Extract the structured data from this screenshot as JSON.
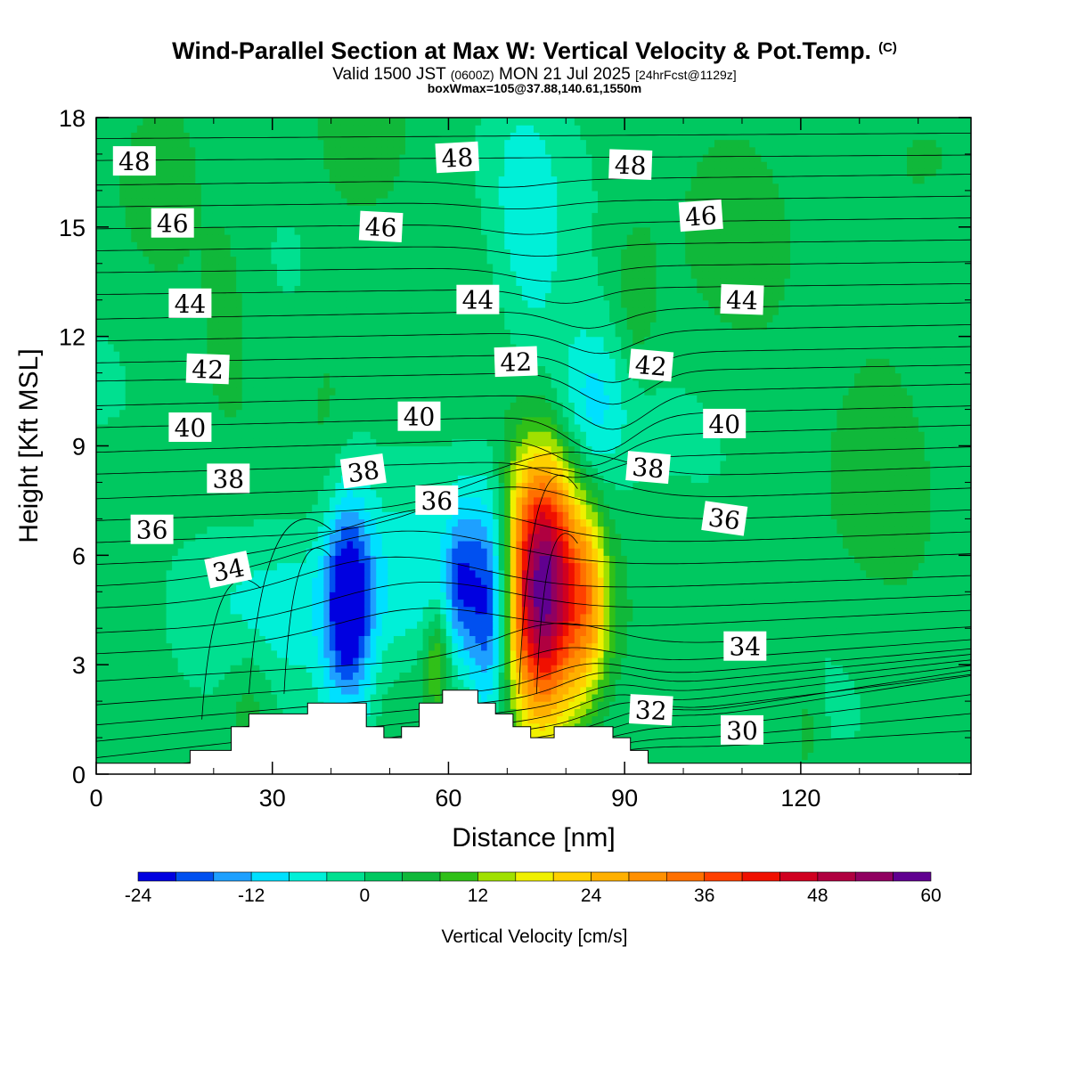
{
  "header": {
    "title": "Wind-Parallel Section at Max W: Vertical Velocity & Pot.Temp.",
    "title_mark": "(C)",
    "valid_prefix": "Valid 1500 JST",
    "valid_utc": "(0600Z)",
    "valid_date": "MON 21 Jul 2025",
    "forecast": "[24hrFcst@1129z]",
    "box_info": "boxWmax=105@37.88,140.61,1550m"
  },
  "chart_data": {
    "type": "heatmap",
    "xlabel": "Distance [nm]",
    "ylabel": "Height [Kft MSL]",
    "xlim": [
      0,
      149
    ],
    "ylim": [
      0,
      18
    ],
    "x_ticks": [
      0,
      30,
      60,
      90,
      120
    ],
    "y_ticks": [
      0,
      3,
      6,
      9,
      12,
      15,
      18
    ],
    "colorbar": {
      "label": "Vertical Velocity [cm/s]",
      "ticks": [
        -24,
        -12,
        0,
        12,
        24,
        36,
        48,
        60
      ],
      "levels": [
        -24,
        -20,
        -16,
        -12,
        -8,
        -4,
        0,
        4,
        8,
        12,
        16,
        20,
        24,
        28,
        32,
        36,
        40,
        44,
        48,
        52,
        56,
        60
      ],
      "colors": [
        "#0000e0",
        "#0050f0",
        "#1ea0ff",
        "#00e0ff",
        "#00f0d8",
        "#00e090",
        "#00c860",
        "#10b83a",
        "#30c018",
        "#a0e000",
        "#f0f000",
        "#ffd000",
        "#ffb000",
        "#ff9000",
        "#ff7000",
        "#ff4000",
        "#f01000",
        "#d00020",
        "#b00040",
        "#900060",
        "#600090"
      ]
    },
    "terrain_kft": [
      {
        "x": 0,
        "h": 0.3
      },
      {
        "x": 16,
        "h": 0.3
      },
      {
        "x": 16,
        "h": 0.65
      },
      {
        "x": 23,
        "h": 0.65
      },
      {
        "x": 23,
        "h": 1.3
      },
      {
        "x": 26,
        "h": 1.3
      },
      {
        "x": 26,
        "h": 1.65
      },
      {
        "x": 36,
        "h": 1.65
      },
      {
        "x": 36,
        "h": 1.95
      },
      {
        "x": 46,
        "h": 1.95
      },
      {
        "x": 46,
        "h": 1.3
      },
      {
        "x": 49,
        "h": 1.3
      },
      {
        "x": 49,
        "h": 1.0
      },
      {
        "x": 52,
        "h": 1.0
      },
      {
        "x": 52,
        "h": 1.3
      },
      {
        "x": 55,
        "h": 1.3
      },
      {
        "x": 55,
        "h": 1.95
      },
      {
        "x": 59,
        "h": 1.95
      },
      {
        "x": 59,
        "h": 2.3
      },
      {
        "x": 65,
        "h": 2.3
      },
      {
        "x": 65,
        "h": 1.95
      },
      {
        "x": 68,
        "h": 1.95
      },
      {
        "x": 68,
        "h": 1.65
      },
      {
        "x": 71,
        "h": 1.65
      },
      {
        "x": 71,
        "h": 1.3
      },
      {
        "x": 74,
        "h": 1.3
      },
      {
        "x": 74,
        "h": 1.0
      },
      {
        "x": 78,
        "h": 1.0
      },
      {
        "x": 78,
        "h": 1.3
      },
      {
        "x": 88,
        "h": 1.3
      },
      {
        "x": 88,
        "h": 1.0
      },
      {
        "x": 91,
        "h": 1.0
      },
      {
        "x": 91,
        "h": 0.65
      },
      {
        "x": 94,
        "h": 0.65
      },
      {
        "x": 94,
        "h": 0.3
      },
      {
        "x": 149,
        "h": 0.3
      }
    ],
    "w_features": [
      {
        "x": 76,
        "y": 5.2,
        "sx": 4.5,
        "sy": 2.6,
        "w": 60
      },
      {
        "x": 84,
        "y": 4.6,
        "sx": 2.5,
        "sy": 1.8,
        "w": 18
      },
      {
        "x": 43,
        "y": 4.6,
        "sx": 3.0,
        "sy": 2.2,
        "w": -24
      },
      {
        "x": 67,
        "y": 4.5,
        "sx": 2.5,
        "sy": 2.3,
        "w": -22
      },
      {
        "x": 62,
        "y": 5.3,
        "sx": 1.8,
        "sy": 1.5,
        "w": -12
      },
      {
        "x": 55,
        "y": 5.2,
        "sx": 11.0,
        "sy": 1.7,
        "w": -8
      },
      {
        "x": 31,
        "y": 4.5,
        "sx": 9.0,
        "sy": 1.7,
        "w": -6
      },
      {
        "x": 84,
        "y": 10.0,
        "sx": 4.5,
        "sy": 1.6,
        "w": -12
      },
      {
        "x": 75,
        "y": 12.5,
        "sx": 4.5,
        "sy": 3.5,
        "w": -6
      },
      {
        "x": 72,
        "y": 15.8,
        "sx": 3.5,
        "sy": 2.0,
        "w": -4
      },
      {
        "x": 58,
        "y": 3.2,
        "sx": 1.5,
        "sy": 1.0,
        "w": 12
      },
      {
        "x": 26,
        "y": 2.0,
        "sx": 3.0,
        "sy": 1.3,
        "w": 6
      },
      {
        "x": 92,
        "y": 13.0,
        "sx": 2.5,
        "sy": 1.5,
        "w": 6
      },
      {
        "x": 22,
        "y": 13.0,
        "sx": 3.0,
        "sy": 2.0,
        "w": 4
      },
      {
        "x": 12,
        "y": 16.5,
        "sx": 4.0,
        "sy": 2.0,
        "w": 4
      },
      {
        "x": 135,
        "y": 11.0,
        "sx": 7.0,
        "sy": 4.0,
        "w": 4
      },
      {
        "x": 110,
        "y": 15.5,
        "sx": 6.0,
        "sy": 2.5,
        "w": 4
      },
      {
        "x": 45,
        "y": 17.0,
        "sx": 5.0,
        "sy": 1.5,
        "w": 4
      },
      {
        "x": 40,
        "y": 11.0,
        "sx": 3.0,
        "sy": 2.5,
        "w": 3
      },
      {
        "x": 121,
        "y": 1.3,
        "sx": 1.5,
        "sy": 1.0,
        "w": 5
      }
    ],
    "theta_contours": [
      {
        "base": 0.45,
        "rate": 0.01,
        "bumps": [
          [
            95,
            0.08,
            8
          ]
        ]
      },
      {
        "base": 0.55,
        "rate": 0.015,
        "bumps": [
          [
            95,
            0.1,
            8
          ]
        ]
      },
      {
        "base": 0.7,
        "rate": 0.02,
        "bumps": [
          [
            95,
            0.15,
            8
          ]
        ]
      },
      {
        "base": 0.85,
        "rate": 0.025,
        "bumps": [
          [
            95,
            0.2,
            8
          ]
        ]
      },
      {
        "base": 1.0,
        "rate": 0.025,
        "bumps": [
          [
            93,
            0.3,
            8
          ]
        ]
      },
      {
        "base": 1.25,
        "rate": 0.02,
        "bumps": [
          [
            90,
            0.4,
            8
          ]
        ]
      },
      {
        "base": 1.5,
        "rate": 0.02,
        "bumps": [
          [
            88,
            0.4,
            8
          ]
        ]
      },
      {
        "base": 1.8,
        "rate": 0.018,
        "bumps": [
          [
            88,
            0.4,
            8
          ]
        ]
      },
      {
        "base": 2.1,
        "rate": 0.016,
        "bumps": [
          [
            86,
            0.5,
            9
          ]
        ]
      },
      {
        "base": 2.4,
        "rate": 0.014,
        "bumps": [
          [
            84,
            0.5,
            10
          ]
        ]
      },
      {
        "base": 2.8,
        "rate": 0.012,
        "bumps": [
          [
            80,
            0.6,
            12
          ]
        ]
      },
      {
        "base": 3.3,
        "rate": 0.01,
        "bumps": [
          [
            78,
            0.8,
            14
          ]
        ]
      },
      {
        "base": 3.9,
        "rate": 0.008,
        "bumps": [
          [
            55,
            0.8,
            20
          ]
        ]
      },
      {
        "base": 4.4,
        "rate": 0.007,
        "bumps": [
          [
            55,
            1.0,
            22
          ]
        ]
      },
      {
        "base": 5.0,
        "rate": 0.006,
        "bumps": [
          [
            50,
            1.1,
            22
          ]
        ]
      },
      {
        "base": 5.6,
        "rate": 0.006,
        "bumps": [
          [
            52,
            1.2,
            24
          ]
        ]
      },
      {
        "base": 6.2,
        "rate": 0.006,
        "bumps": [
          [
            58,
            1.2,
            22
          ]
        ]
      },
      {
        "base": 6.8,
        "rate": 0.006,
        "bumps": [
          [
            70,
            1.1,
            18
          ]
        ]
      },
      {
        "base": 7.4,
        "rate": 0.006,
        "bumps": [
          [
            75,
            1.0,
            16
          ]
        ]
      },
      {
        "base": 8.0,
        "rate": 0.006,
        "bumps": [
          [
            80,
            0.8,
            14
          ]
        ]
      },
      {
        "base": 8.6,
        "rate": 0.005,
        "bumps": [
          [
            82,
            -0.5,
            8
          ]
        ]
      },
      {
        "base": 9.2,
        "rate": 0.005,
        "bumps": [
          [
            84,
            -0.8,
            8
          ]
        ]
      },
      {
        "base": 9.8,
        "rate": 0.004,
        "bumps": [
          [
            86,
            -1.0,
            8
          ]
        ]
      },
      {
        "base": 10.4,
        "rate": 0.004,
        "bumps": [
          [
            88,
            -1.0,
            8
          ]
        ]
      },
      {
        "base": 11.0,
        "rate": 0.003,
        "bumps": [
          [
            88,
            -0.9,
            8
          ]
        ]
      },
      {
        "base": 11.5,
        "rate": 0.003,
        "bumps": [
          [
            88,
            -0.8,
            8
          ]
        ]
      },
      {
        "base": 12.1,
        "rate": 0.003,
        "bumps": [
          [
            86,
            -0.6,
            8
          ]
        ]
      },
      {
        "base": 12.7,
        "rate": 0.003,
        "bumps": [
          [
            84,
            -0.5,
            8
          ]
        ]
      },
      {
        "base": 13.3,
        "rate": 0.002,
        "bumps": [
          [
            80,
            -0.4,
            8
          ]
        ]
      },
      {
        "base": 13.9,
        "rate": 0.002,
        "bumps": [
          [
            78,
            -0.4,
            10
          ]
        ]
      },
      {
        "base": 14.5,
        "rate": 0.002,
        "bumps": [
          [
            76,
            -0.3,
            10
          ]
        ]
      },
      {
        "base": 15.1,
        "rate": 0.002,
        "bumps": [
          [
            74,
            -0.3,
            10
          ]
        ]
      },
      {
        "base": 15.7,
        "rate": 0.002,
        "bumps": [
          [
            72,
            -0.2,
            10
          ]
        ]
      },
      {
        "base": 16.3,
        "rate": 0.002,
        "bumps": [
          [
            70,
            -0.2,
            10
          ]
        ]
      },
      {
        "base": 16.9,
        "rate": 0.001,
        "bumps": []
      },
      {
        "base": 17.5,
        "rate": 0.001,
        "bumps": []
      }
    ],
    "contour_labels": [
      {
        "text": "48",
        "x": 6.5,
        "y": 16.8,
        "rot": 0
      },
      {
        "text": "48",
        "x": 61.5,
        "y": 16.9,
        "rot": 3
      },
      {
        "text": "48",
        "x": 91,
        "y": 16.7,
        "rot": -2
      },
      {
        "text": "46",
        "x": 13,
        "y": 15.1,
        "rot": 0
      },
      {
        "text": "46",
        "x": 48.5,
        "y": 15.0,
        "rot": -3
      },
      {
        "text": "46",
        "x": 103,
        "y": 15.3,
        "rot": 4
      },
      {
        "text": "44",
        "x": 16,
        "y": 12.9,
        "rot": 0
      },
      {
        "text": "44",
        "x": 65,
        "y": 13.0,
        "rot": 0
      },
      {
        "text": "44",
        "x": 110,
        "y": 13.0,
        "rot": -2
      },
      {
        "text": "42",
        "x": 19,
        "y": 11.1,
        "rot": -2
      },
      {
        "text": "42",
        "x": 71.5,
        "y": 11.3,
        "rot": 2
      },
      {
        "text": "42",
        "x": 94.5,
        "y": 11.2,
        "rot": -5
      },
      {
        "text": "40",
        "x": 16,
        "y": 9.5,
        "rot": 0
      },
      {
        "text": "40",
        "x": 55,
        "y": 9.8,
        "rot": 0
      },
      {
        "text": "40",
        "x": 107,
        "y": 9.6,
        "rot": 0
      },
      {
        "text": "38",
        "x": 22.5,
        "y": 8.1,
        "rot": 0
      },
      {
        "text": "38",
        "x": 45.5,
        "y": 8.3,
        "rot": 8
      },
      {
        "text": "38",
        "x": 94,
        "y": 8.4,
        "rot": -5
      },
      {
        "text": "36",
        "x": 9.5,
        "y": 6.7,
        "rot": 0
      },
      {
        "text": "36",
        "x": 58,
        "y": 7.5,
        "rot": 0
      },
      {
        "text": "36",
        "x": 107,
        "y": 7.0,
        "rot": -8
      },
      {
        "text": "34",
        "x": 22.5,
        "y": 5.6,
        "rot": 12
      },
      {
        "text": "34",
        "x": 110.5,
        "y": 3.5,
        "rot": 0
      },
      {
        "text": "32",
        "x": 94.5,
        "y": 1.75,
        "rot": -3
      },
      {
        "text": "30",
        "x": 110,
        "y": 1.2,
        "rot": 0
      }
    ]
  }
}
